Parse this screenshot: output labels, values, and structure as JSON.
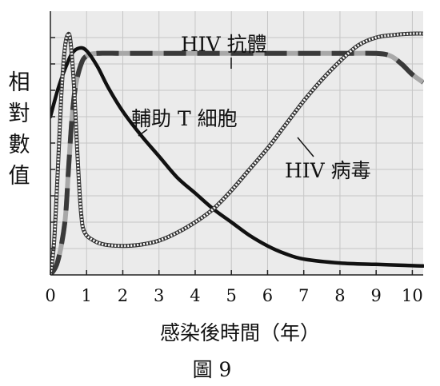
{
  "chart_data": {
    "type": "line",
    "title": "",
    "ylabel": "相對數值",
    "xlabel": "感染後時間（年）",
    "caption": "圖 9",
    "xlim": [
      0,
      10.3
    ],
    "ylim": [
      0,
      1
    ],
    "x_ticks": [
      0,
      1,
      2,
      3,
      4,
      5,
      6,
      7,
      8,
      9,
      10
    ],
    "grid": true,
    "series": [
      {
        "name": "HIV 抗體",
        "style": "dashed",
        "color": "#3a3a3a",
        "points": [
          [
            0,
            0
          ],
          [
            0.2,
            0.05
          ],
          [
            0.4,
            0.2
          ],
          [
            0.5,
            0.4
          ],
          [
            0.6,
            0.6
          ],
          [
            0.7,
            0.72
          ],
          [
            0.85,
            0.8
          ],
          [
            1,
            0.83
          ],
          [
            1.3,
            0.84
          ],
          [
            2,
            0.84
          ],
          [
            3,
            0.84
          ],
          [
            4,
            0.84
          ],
          [
            5,
            0.84
          ],
          [
            6,
            0.84
          ],
          [
            7,
            0.84
          ],
          [
            8,
            0.84
          ],
          [
            9,
            0.84
          ],
          [
            9.4,
            0.83
          ],
          [
            9.7,
            0.8
          ],
          [
            10,
            0.76
          ],
          [
            10.3,
            0.73
          ]
        ]
      },
      {
        "name": "輔助 T 細胞",
        "style": "solid",
        "color": "#111111",
        "points": [
          [
            0,
            0.6
          ],
          [
            0.2,
            0.7
          ],
          [
            0.4,
            0.78
          ],
          [
            0.6,
            0.84
          ],
          [
            0.8,
            0.86
          ],
          [
            1,
            0.85
          ],
          [
            1.3,
            0.79
          ],
          [
            1.6,
            0.71
          ],
          [
            2,
            0.62
          ],
          [
            2.5,
            0.53
          ],
          [
            3,
            0.45
          ],
          [
            3.5,
            0.37
          ],
          [
            4,
            0.31
          ],
          [
            4.5,
            0.25
          ],
          [
            5,
            0.2
          ],
          [
            5.5,
            0.15
          ],
          [
            6,
            0.11
          ],
          [
            6.5,
            0.08
          ],
          [
            7,
            0.06
          ],
          [
            8,
            0.045
          ],
          [
            9,
            0.04
          ],
          [
            10,
            0.035
          ],
          [
            10.3,
            0.034
          ]
        ]
      },
      {
        "name": "HIV 病毒",
        "style": "dotted",
        "color": "#333333",
        "points": [
          [
            0,
            0
          ],
          [
            0.1,
            0.12
          ],
          [
            0.2,
            0.38
          ],
          [
            0.3,
            0.68
          ],
          [
            0.4,
            0.86
          ],
          [
            0.48,
            0.91
          ],
          [
            0.55,
            0.89
          ],
          [
            0.65,
            0.72
          ],
          [
            0.75,
            0.45
          ],
          [
            0.85,
            0.23
          ],
          [
            0.95,
            0.16
          ],
          [
            1.2,
            0.13
          ],
          [
            1.5,
            0.115
          ],
          [
            2,
            0.11
          ],
          [
            2.5,
            0.115
          ],
          [
            3,
            0.13
          ],
          [
            3.5,
            0.16
          ],
          [
            4,
            0.2
          ],
          [
            4.5,
            0.25
          ],
          [
            5,
            0.32
          ],
          [
            5.5,
            0.4
          ],
          [
            6,
            0.48
          ],
          [
            6.5,
            0.57
          ],
          [
            7,
            0.66
          ],
          [
            7.5,
            0.74
          ],
          [
            8,
            0.81
          ],
          [
            8.5,
            0.87
          ],
          [
            9,
            0.9
          ],
          [
            9.5,
            0.91
          ],
          [
            10,
            0.915
          ],
          [
            10.3,
            0.915
          ]
        ]
      }
    ],
    "annotations": [
      {
        "text": "HIV 抗體",
        "series": "HIV 抗體"
      },
      {
        "text": "輔助 T 細胞",
        "series": "輔助 T 細胞"
      },
      {
        "text": "HIV 病毒",
        "series": "HIV 病毒"
      }
    ]
  }
}
